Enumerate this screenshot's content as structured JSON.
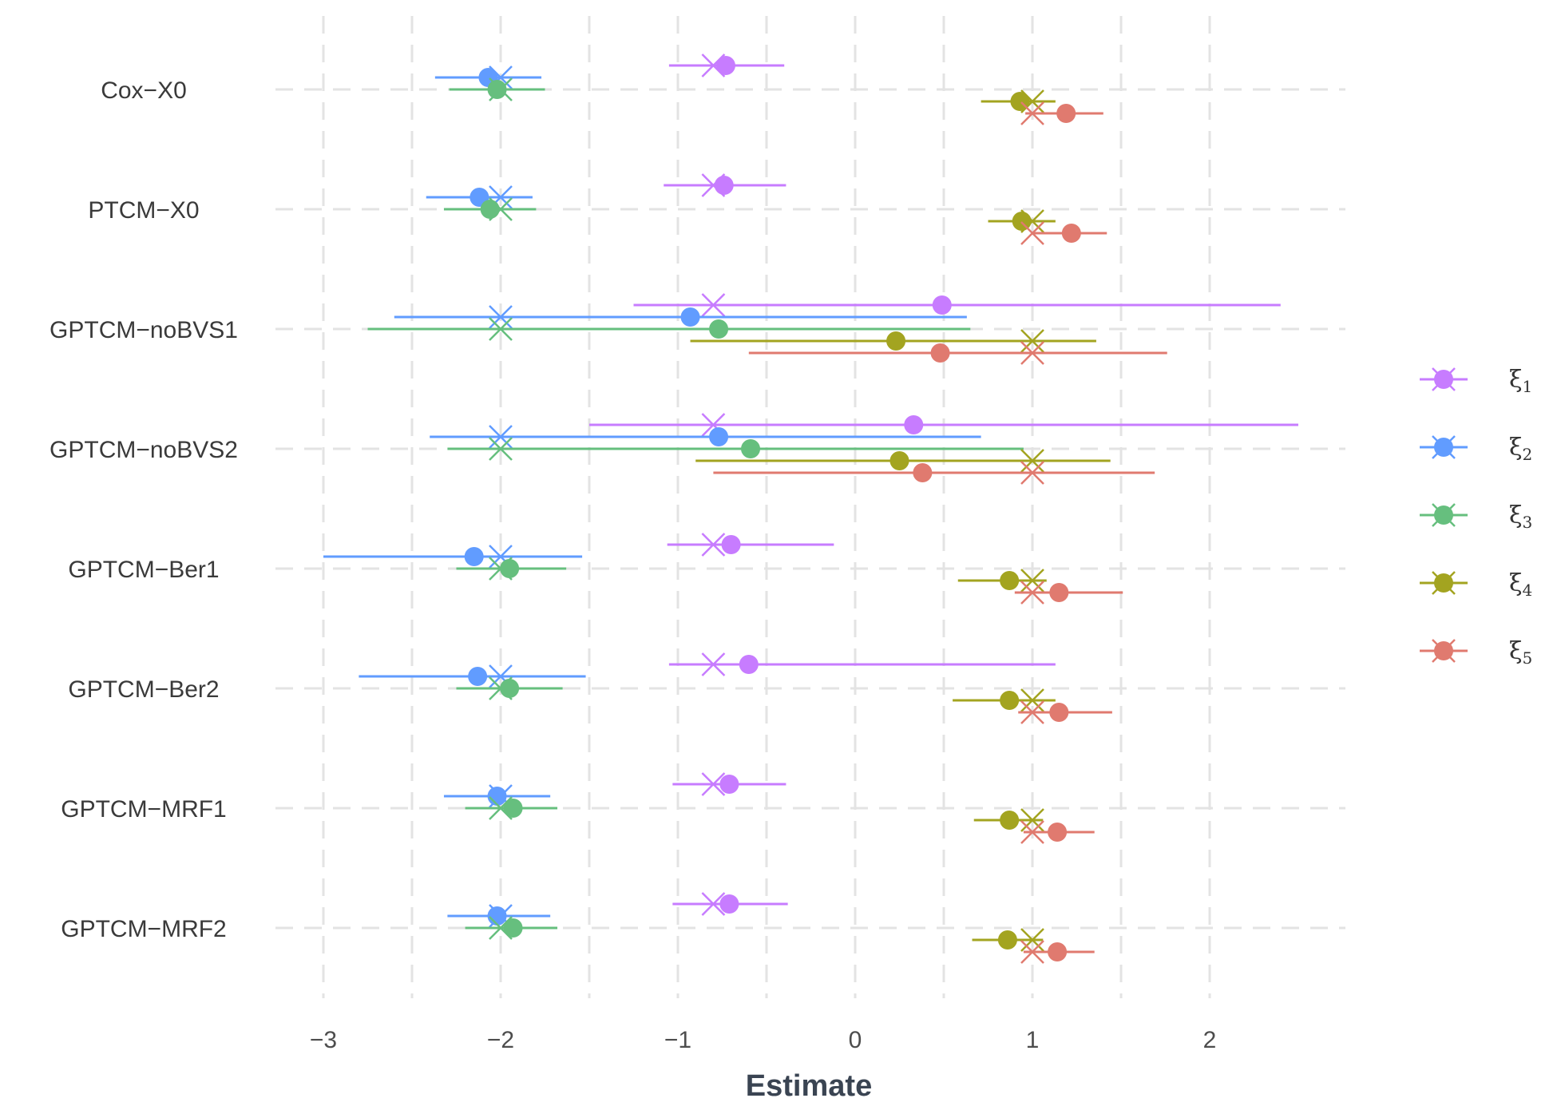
{
  "chart_data": {
    "type": "forest",
    "title": "",
    "xlabel": "Estimate",
    "ylabel": "",
    "xlim": [
      -3.3,
      2.75
    ],
    "xticks": [
      -3,
      -2,
      -1,
      0,
      1,
      2
    ],
    "xtick_labels": [
      "−3",
      "−2",
      "−1",
      "0",
      "1",
      "2"
    ],
    "grid": true,
    "legend_position": "right",
    "true_values": [
      -0.8,
      -2.0,
      -2.0,
      1.0,
      1.0
    ],
    "categories": [
      "Cox−X0",
      "PTCM−X0",
      "GPTCM−noBVS1",
      "GPTCM−noBVS2",
      "GPTCM−Ber1",
      "GPTCM−Ber2",
      "GPTCM−MRF1",
      "GPTCM−MRF2"
    ],
    "series": [
      {
        "name": "ξ",
        "subscript": "1",
        "color": "#c77cff",
        "estimates": [
          -0.73,
          -0.74,
          0.49,
          0.33,
          -0.7,
          -0.6,
          -0.71,
          -0.71
        ],
        "lower": [
          -1.05,
          -1.08,
          -1.25,
          -1.5,
          -1.06,
          -1.05,
          -1.03,
          -1.03
        ],
        "upper": [
          -0.4,
          -0.39,
          2.4,
          2.5,
          -0.12,
          1.13,
          -0.39,
          -0.38
        ]
      },
      {
        "name": "ξ",
        "subscript": "2",
        "color": "#619cff",
        "estimates": [
          -2.07,
          -2.12,
          -0.93,
          -0.77,
          -2.15,
          -2.13,
          -2.02,
          -2.02
        ],
        "lower": [
          -2.37,
          -2.42,
          -2.6,
          -2.4,
          -3.0,
          -2.8,
          -2.32,
          -2.3
        ],
        "upper": [
          -1.77,
          -1.82,
          0.63,
          0.71,
          -1.54,
          -1.52,
          -1.72,
          -1.72
        ]
      },
      {
        "name": "ξ",
        "subscript": "3",
        "color": "#66bf7e",
        "estimates": [
          -2.02,
          -2.06,
          -0.77,
          -0.59,
          -1.95,
          -1.95,
          -1.93,
          -1.93
        ],
        "lower": [
          -2.29,
          -2.32,
          -2.75,
          -2.3,
          -2.25,
          -2.25,
          -2.2,
          -2.2
        ],
        "upper": [
          -1.75,
          -1.8,
          0.65,
          0.95,
          -1.63,
          -1.65,
          -1.68,
          -1.68
        ]
      },
      {
        "name": "ξ",
        "subscript": "4",
        "color": "#a3a420",
        "estimates": [
          0.93,
          0.94,
          0.23,
          0.25,
          0.87,
          0.87,
          0.87,
          0.86
        ],
        "lower": [
          0.71,
          0.75,
          -0.93,
          -0.9,
          0.58,
          0.55,
          0.67,
          0.66
        ],
        "upper": [
          1.13,
          1.13,
          1.36,
          1.44,
          1.08,
          1.13,
          1.06,
          1.06
        ]
      },
      {
        "name": "ξ",
        "subscript": "5",
        "color": "#e07a6f",
        "estimates": [
          1.19,
          1.22,
          0.48,
          0.38,
          1.15,
          1.15,
          1.14,
          1.14
        ],
        "lower": [
          0.96,
          1.0,
          -0.6,
          -0.8,
          0.9,
          0.92,
          0.95,
          0.95
        ],
        "upper": [
          1.4,
          1.42,
          1.76,
          1.69,
          1.51,
          1.45,
          1.35,
          1.35
        ]
      }
    ]
  }
}
